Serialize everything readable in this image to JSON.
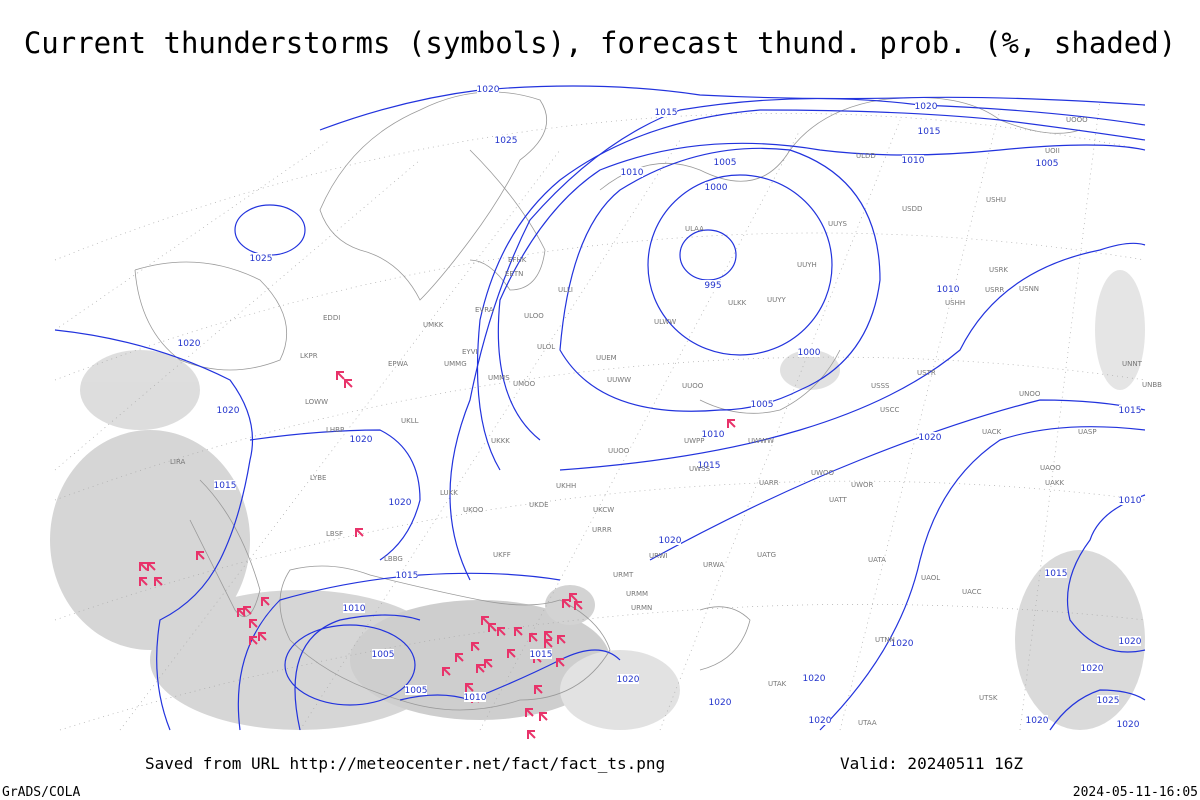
{
  "header": {
    "title": "Current thunderstorms (symbols), forecast thund. prob. (%, shaded)"
  },
  "footer": {
    "saved_from": "Saved from URL http://meteocenter.net/fact/fact_ts.png",
    "valid": "Valid: 20240511 16Z",
    "credit": "GrADS/COLA",
    "timestamp": "2024-05-11-16:05"
  },
  "isobar_labels": [
    "1020",
    "1015",
    "1025",
    "1020",
    "1015",
    "1010",
    "1005",
    "1005",
    "1010",
    "1000",
    "995",
    "1025",
    "1020",
    "1020",
    "1020",
    "1010",
    "1000",
    "1005",
    "1010",
    "1015",
    "1020",
    "1015",
    "1015",
    "1020",
    "1010",
    "1020",
    "1015",
    "1015",
    "1010",
    "1005",
    "1005",
    "1010",
    "1015",
    "1020",
    "1020",
    "1020",
    "1020",
    "1020",
    "1020",
    "1020",
    "1025",
    "1020",
    "1020"
  ],
  "stations": [
    "ULLI",
    "ULOO",
    "EFHK",
    "EETN",
    "EVRA",
    "ULOL",
    "UMKK",
    "EYVI",
    "UMMG",
    "UMMS",
    "UMOO",
    "UUEM",
    "UUWW",
    "UUOO",
    "UWWW",
    "UWPP",
    "UUOO",
    "UWSS",
    "URWA",
    "URMT",
    "URMM",
    "URMN",
    "URRR",
    "UKCW",
    "UKFF",
    "LBBG",
    "LBSF",
    "LYBE",
    "LIRA",
    "EPWA",
    "LKPR",
    "EDDI",
    "LOWW",
    "LHBP",
    "UKLL",
    "UKKK",
    "UKHH",
    "UKDE",
    "UKOO",
    "LUKK",
    "ULAA",
    "ULKK",
    "UUYY",
    "UUYH",
    "UUYS",
    "ULWW",
    "USSS",
    "USCC",
    "USTR",
    "USRR",
    "USRK",
    "USNN",
    "USHH",
    "UNOO",
    "UACK",
    "UASP",
    "UAOO",
    "UAKK",
    "UATT",
    "UWOO",
    "UWOR",
    "UARR",
    "UATG",
    "UATA",
    "UAOL",
    "UACC",
    "UTNN",
    "UTAK",
    "UTAA",
    "UTSK",
    "UNNT",
    "UNBB",
    "UOOO",
    "UOII",
    "ULDD",
    "USDD",
    "USHU",
    "URWI"
  ]
}
